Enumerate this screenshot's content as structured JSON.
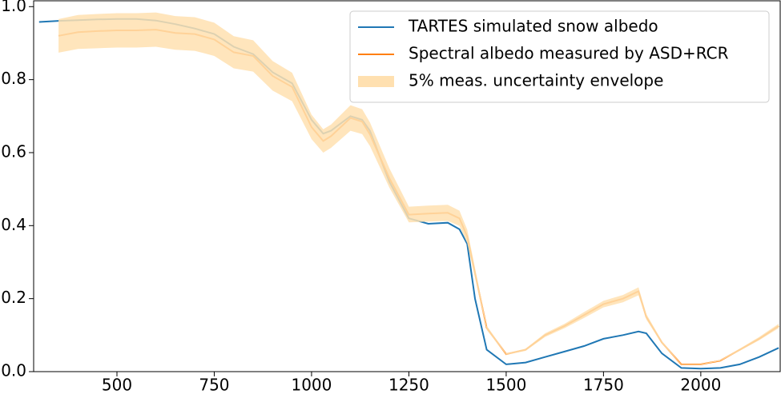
{
  "chart_data": {
    "type": "line",
    "x": [
      300,
      350,
      400,
      450,
      500,
      550,
      600,
      650,
      700,
      750,
      800,
      850,
      900,
      950,
      1000,
      1030,
      1050,
      1100,
      1130,
      1150,
      1200,
      1250,
      1300,
      1350,
      1380,
      1400,
      1420,
      1450,
      1500,
      1550,
      1600,
      1650,
      1700,
      1750,
      1800,
      1840,
      1860,
      1900,
      1950,
      2000,
      2050,
      2100,
      2150,
      2200
    ],
    "series": [
      {
        "name": "TARTES simulated snow albedo",
        "color": "#1f77b4",
        "values": [
          0.958,
          0.961,
          0.963,
          0.965,
          0.966,
          0.966,
          0.962,
          0.952,
          0.94,
          0.925,
          0.89,
          0.87,
          0.82,
          0.79,
          0.69,
          0.652,
          0.66,
          0.7,
          0.69,
          0.66,
          0.52,
          0.42,
          0.405,
          0.408,
          0.39,
          0.35,
          0.2,
          0.06,
          0.02,
          0.025,
          0.04,
          0.055,
          0.07,
          0.09,
          0.1,
          0.11,
          0.105,
          0.05,
          0.01,
          0.008,
          0.01,
          0.02,
          0.04,
          0.065
        ]
      },
      {
        "name": "Spectral albedo measured by ASD+RCR",
        "color": "#ff7f0e",
        "values": [
          null,
          0.92,
          0.93,
          0.933,
          0.935,
          0.935,
          0.937,
          0.928,
          0.925,
          0.91,
          0.875,
          0.865,
          0.81,
          0.78,
          0.67,
          0.632,
          0.645,
          0.695,
          0.685,
          0.65,
          0.53,
          0.43,
          0.433,
          0.435,
          0.42,
          0.37,
          0.27,
          0.12,
          0.048,
          0.06,
          0.1,
          0.125,
          0.155,
          0.185,
          0.2,
          0.22,
          0.15,
          0.08,
          0.02,
          0.02,
          0.03,
          0.06,
          0.09,
          0.125
        ]
      },
      {
        "name": "5% meas. uncertainty envelope",
        "color": "#ffe0b0",
        "lower": [
          null,
          0.874,
          0.884,
          0.886,
          0.888,
          0.888,
          0.89,
          0.882,
          0.879,
          0.865,
          0.831,
          0.822,
          0.77,
          0.741,
          0.637,
          0.6,
          0.613,
          0.66,
          0.651,
          0.618,
          0.504,
          0.409,
          0.411,
          0.413,
          0.399,
          0.352,
          0.257,
          0.114,
          0.046,
          0.057,
          0.095,
          0.119,
          0.147,
          0.176,
          0.19,
          0.209,
          0.143,
          0.076,
          0.019,
          0.019,
          0.029,
          0.057,
          0.086,
          0.119
        ],
        "upper": [
          null,
          0.966,
          0.977,
          0.98,
          0.982,
          0.982,
          0.984,
          0.974,
          0.971,
          0.956,
          0.919,
          0.908,
          0.851,
          0.819,
          0.704,
          0.664,
          0.677,
          0.73,
          0.719,
          0.683,
          0.557,
          0.452,
          0.455,
          0.457,
          0.441,
          0.389,
          0.284,
          0.126,
          0.05,
          0.063,
          0.105,
          0.131,
          0.163,
          0.194,
          0.21,
          0.231,
          0.158,
          0.084,
          0.021,
          0.021,
          0.032,
          0.063,
          0.095,
          0.131
        ]
      }
    ],
    "xlim": [
      286,
      2204
    ],
    "ylim": [
      0,
      1.016
    ],
    "xticks": [
      500,
      750,
      1000,
      1250,
      1500,
      1750,
      2000
    ],
    "yticks": [
      {
        "value": 0,
        "label": "0.0"
      },
      0.2,
      0.4,
      0.6,
      0.8,
      {
        "value": 1,
        "label": "1.0"
      }
    ],
    "legend": "upper right"
  }
}
